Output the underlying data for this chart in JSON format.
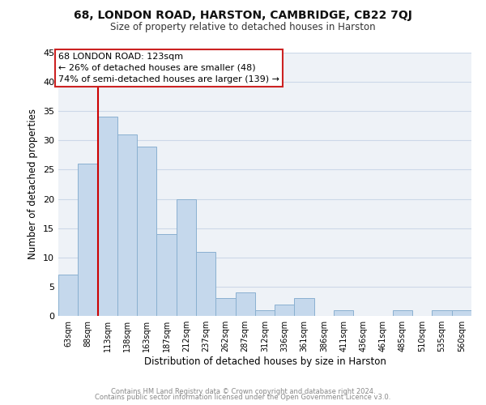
{
  "title": "68, LONDON ROAD, HARSTON, CAMBRIDGE, CB22 7QJ",
  "subtitle": "Size of property relative to detached houses in Harston",
  "xlabel": "Distribution of detached houses by size in Harston",
  "ylabel": "Number of detached properties",
  "bar_labels": [
    "63sqm",
    "88sqm",
    "113sqm",
    "138sqm",
    "163sqm",
    "187sqm",
    "212sqm",
    "237sqm",
    "262sqm",
    "287sqm",
    "312sqm",
    "336sqm",
    "361sqm",
    "386sqm",
    "411sqm",
    "436sqm",
    "461sqm",
    "485sqm",
    "510sqm",
    "535sqm",
    "560sqm"
  ],
  "bar_values": [
    7,
    26,
    34,
    31,
    29,
    14,
    20,
    11,
    3,
    4,
    1,
    2,
    3,
    0,
    1,
    0,
    0,
    1,
    0,
    1,
    1
  ],
  "bar_color": "#c5d8ec",
  "bar_edge_color": "#8ab0d0",
  "grid_color": "#ccd8e8",
  "background_color": "#eef2f7",
  "vline_color": "#cc0000",
  "annotation_text_line1": "68 LONDON ROAD: 123sqm",
  "annotation_text_line2": "← 26% of detached houses are smaller (48)",
  "annotation_text_line3": "74% of semi-detached houses are larger (139) →",
  "footer_line1": "Contains HM Land Registry data © Crown copyright and database right 2024.",
  "footer_line2": "Contains public sector information licensed under the Open Government Licence v3.0.",
  "ylim": [
    0,
    45
  ],
  "yticks": [
    0,
    5,
    10,
    15,
    20,
    25,
    30,
    35,
    40,
    45
  ],
  "vline_bar_index": 2
}
